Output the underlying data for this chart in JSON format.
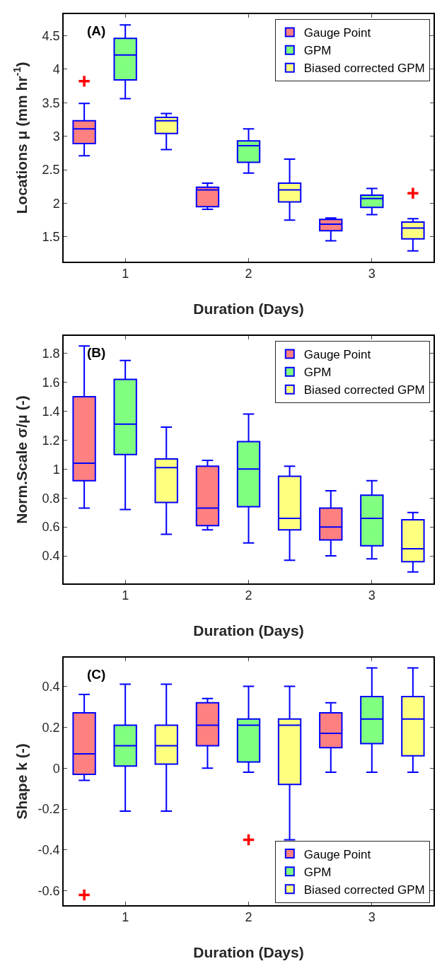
{
  "chart_data": [
    {
      "type": "box",
      "xlabel": "Duration (Days)",
      "ylabel": "Locations μ (mm hr$^{-1}$)",
      "annotations": [
        "(A)"
      ],
      "xlim": [
        0.5,
        3.5
      ],
      "xticks": [
        1,
        2,
        3
      ],
      "ylim": [
        1.13,
        4.82
      ],
      "yticks": [
        1.5,
        2,
        2.5,
        3,
        3.5,
        4,
        4.5
      ],
      "legend": "top right",
      "grid": false,
      "series": [
        {
          "name": "Gauge Point",
          "color": "#ff8080",
          "x": [
            0.667,
            1.667,
            2.667
          ],
          "boxes": [
            {
              "low": 2.71,
              "q1": 2.89,
              "median": 3.11,
              "q3": 3.23,
              "high": 3.49,
              "outliers": [
                3.82
              ]
            },
            {
              "low": 1.91,
              "q1": 1.95,
              "median": 2.2,
              "q3": 2.24,
              "high": 2.3
            },
            {
              "low": 1.44,
              "q1": 1.59,
              "median": 1.69,
              "q3": 1.76,
              "high": 1.78
            }
          ]
        },
        {
          "name": "GPM",
          "color": "#80ff80",
          "x": [
            1,
            2,
            3
          ],
          "boxes": [
            {
              "low": 3.56,
              "q1": 3.84,
              "median": 4.21,
              "q3": 4.46,
              "high": 4.66
            },
            {
              "low": 2.45,
              "q1": 2.61,
              "median": 2.86,
              "q3": 2.93,
              "high": 3.11
            },
            {
              "low": 1.83,
              "q1": 1.94,
              "median": 2.07,
              "q3": 2.12,
              "high": 2.22
            }
          ]
        },
        {
          "name": "Biased corrected GPM",
          "color": "#ffff80",
          "x": [
            1.333,
            2.333,
            3.333
          ],
          "boxes": [
            {
              "low": 2.8,
              "q1": 3.04,
              "median": 3.23,
              "q3": 3.28,
              "high": 3.34
            },
            {
              "low": 1.75,
              "q1": 2.02,
              "median": 2.2,
              "q3": 2.3,
              "high": 2.66
            },
            {
              "low": 1.29,
              "q1": 1.47,
              "median": 1.63,
              "q3": 1.72,
              "high": 1.77,
              "outliers": [
                2.15
              ]
            }
          ]
        }
      ]
    },
    {
      "type": "box",
      "xlabel": "Duration (Days)",
      "ylabel": "Norm.Scale σ/μ (-)",
      "annotations": [
        "(B)"
      ],
      "xlim": [
        0.5,
        3.5
      ],
      "xticks": [
        1,
        2,
        3
      ],
      "ylim": [
        0.21,
        1.92
      ],
      "yticks": [
        {
          "value": 0.4,
          "label": "0.4"
        },
        {
          "value": 0.6,
          "label": "0.6"
        },
        {
          "value": 0.8,
          "label": "0.8"
        },
        1,
        {
          "value": 1.2,
          "label": "1.2"
        },
        {
          "value": 1.4,
          "label": "1.4"
        },
        {
          "value": 1.6,
          "label": "1.6"
        },
        {
          "value": 1.8,
          "label": "1.8"
        }
      ],
      "legend": "top right",
      "grid": false,
      "series": [
        {
          "name": "Gauge Point",
          "color": "#ff8080",
          "x": [
            0.667,
            1.667,
            2.667
          ],
          "boxes": [
            {
              "low": 0.73,
              "q1": 0.92,
              "median": 1.04,
              "q3": 1.5,
              "high": 1.85
            },
            {
              "low": 0.58,
              "q1": 0.61,
              "median": 0.73,
              "q3": 1.02,
              "high": 1.06
            },
            {
              "low": 0.4,
              "q1": 0.51,
              "median": 0.6,
              "q3": 0.73,
              "high": 0.85
            }
          ]
        },
        {
          "name": "GPM",
          "color": "#80ff80",
          "x": [
            1,
            2,
            3
          ],
          "boxes": [
            {
              "low": 0.72,
              "q1": 1.1,
              "median": 1.31,
              "q3": 1.62,
              "high": 1.75
            },
            {
              "low": 0.49,
              "q1": 0.74,
              "median": 1.0,
              "q3": 1.19,
              "high": 1.38
            },
            {
              "low": 0.38,
              "q1": 0.47,
              "median": 0.66,
              "q3": 0.82,
              "high": 0.92
            }
          ]
        },
        {
          "name": "Biased corrected GPM",
          "color": "#ffff80",
          "x": [
            1.333,
            2.333,
            3.333
          ],
          "boxes": [
            {
              "low": 0.55,
              "q1": 0.77,
              "median": 1.01,
              "q3": 1.07,
              "high": 1.29
            },
            {
              "low": 0.37,
              "q1": 0.58,
              "median": 0.66,
              "q3": 0.95,
              "high": 1.02
            },
            {
              "low": 0.29,
              "q1": 0.36,
              "median": 0.45,
              "q3": 0.65,
              "high": 0.7
            }
          ]
        }
      ]
    },
    {
      "type": "box",
      "xlabel": "Duration (Days)",
      "ylabel": "Shape k (-)",
      "annotations": [
        "(C)"
      ],
      "xlim": [
        0.5,
        3.5
      ],
      "xticks": [
        1,
        2,
        3
      ],
      "ylim": [
        -0.67,
        0.54
      ],
      "yticks": [
        {
          "value": -0.6,
          "label": "-0.6"
        },
        {
          "value": -0.4,
          "label": "-0.4"
        },
        {
          "value": -0.2,
          "label": "-0.2"
        },
        0,
        {
          "value": 0.2,
          "label": "0.2"
        },
        {
          "value": 0.4,
          "label": "0.4"
        }
      ],
      "legend": "bottom right",
      "grid": false,
      "series": [
        {
          "name": "Gauge Point",
          "color": "#ff8080",
          "x": [
            0.667,
            1.667,
            2.667
          ],
          "boxes": [
            {
              "low": -0.06,
              "q1": -0.03,
              "median": 0.07,
              "q3": 0.27,
              "high": 0.36,
              "outliers": [
                -0.62
              ]
            },
            {
              "low": 0.0,
              "q1": 0.11,
              "median": 0.21,
              "q3": 0.32,
              "high": 0.34
            },
            {
              "low": -0.02,
              "q1": 0.1,
              "median": 0.17,
              "q3": 0.27,
              "high": 0.32
            }
          ]
        },
        {
          "name": "GPM",
          "color": "#80ff80",
          "x": [
            1,
            2,
            3
          ],
          "boxes": [
            {
              "low": -0.21,
              "q1": 0.01,
              "median": 0.11,
              "q3": 0.21,
              "high": 0.41
            },
            {
              "low": -0.02,
              "q1": 0.03,
              "median": 0.21,
              "q3": 0.24,
              "high": 0.4,
              "outliers": [
                -0.35
              ]
            },
            {
              "low": -0.02,
              "q1": 0.12,
              "median": 0.24,
              "q3": 0.35,
              "high": 0.49
            }
          ]
        },
        {
          "name": "Biased corrected GPM",
          "color": "#ffff80",
          "x": [
            1.333,
            2.333,
            3.333
          ],
          "boxes": [
            {
              "low": -0.21,
              "q1": 0.02,
              "median": 0.11,
              "q3": 0.21,
              "high": 0.41
            },
            {
              "low": -0.35,
              "q1": -0.08,
              "median": 0.21,
              "q3": 0.24,
              "high": 0.4
            },
            {
              "low": -0.02,
              "q1": 0.06,
              "median": 0.24,
              "q3": 0.35,
              "high": 0.49
            }
          ]
        }
      ]
    }
  ]
}
